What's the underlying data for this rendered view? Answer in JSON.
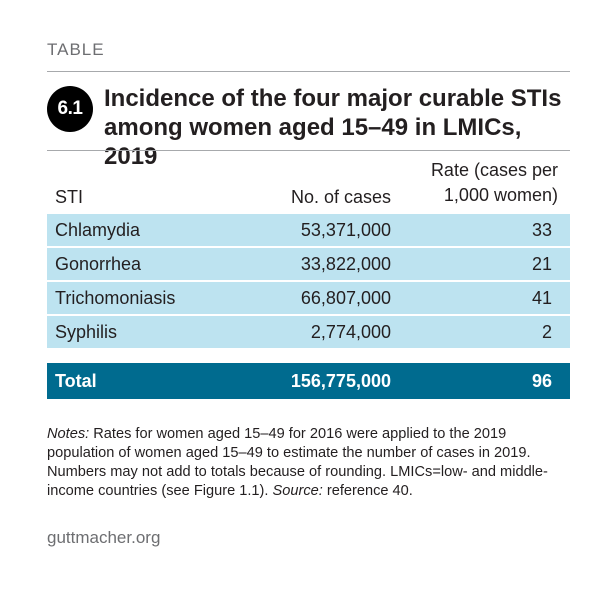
{
  "kicker": "TABLE",
  "badge": "6.1",
  "title": "Incidence of the four major curable STIs among  women aged 15–49 in LMICs, 2019",
  "table": {
    "headers": {
      "sti": "STI",
      "cases": "No. of cases",
      "rate_line1": "Rate (cases per",
      "rate_line2": "1,000 women)"
    },
    "rows": [
      {
        "sti": "Chlamydia",
        "cases": "53,371,000",
        "rate": "33"
      },
      {
        "sti": "Gonorrhea",
        "cases": "33,822,000",
        "rate": "21"
      },
      {
        "sti": "Trichomoniasis",
        "cases": "66,807,000",
        "rate": "41"
      },
      {
        "sti": "Syphilis",
        "cases": "2,774,000",
        "rate": "2"
      }
    ],
    "total": {
      "sti": "Total",
      "cases": "156,775,000",
      "rate": "96"
    }
  },
  "notes": {
    "label": "Notes:",
    "text": " Rates for women aged 15–49 for 2016 were applied to the 2019 population of women aged 15–49 to estimate the number of cases in 2019. Numbers may not add to totals because of rounding. LMICs=low- and middle-income countries (see Figure 1.1). ",
    "source_label": "Source:",
    "source_text": " reference 40."
  },
  "site": "guttmacher.org",
  "colors": {
    "row_fill": "#bde3f0",
    "total_fill": "#006b8f",
    "badge_fill": "#000000"
  }
}
